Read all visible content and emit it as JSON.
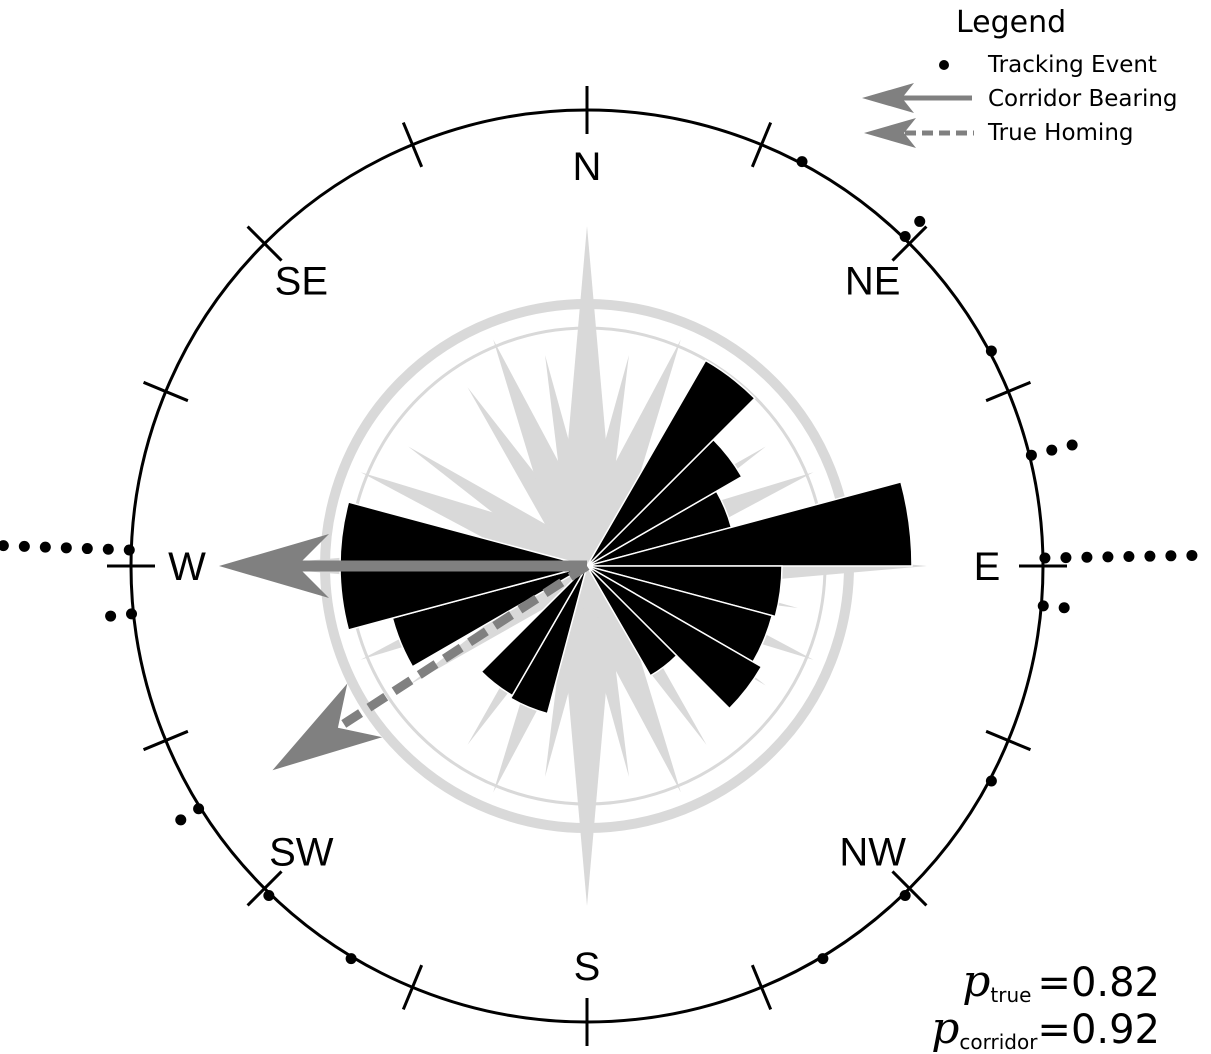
{
  "chart_data": {
    "type": "rose",
    "polar_orientation": "N at top, E at right, W at left, S at bottom; SE label at upper-left, NE at upper-right, SW at lower-left, NW at lower-right",
    "directions": [
      {
        "key": "N",
        "label": "N",
        "angle_deg": 0
      },
      {
        "key": "NE",
        "label": "NE",
        "angle_deg": 45
      },
      {
        "key": "E",
        "label": "E",
        "angle_deg": 90
      },
      {
        "key": "NW",
        "label": "NW",
        "angle_deg": 135
      },
      {
        "key": "S",
        "label": "S",
        "angle_deg": 180
      },
      {
        "key": "SW",
        "label": "SW",
        "angle_deg": 225
      },
      {
        "key": "W",
        "label": "W",
        "angle_deg": 270
      },
      {
        "key": "SE",
        "label": "SE",
        "angle_deg": 315
      }
    ],
    "rose_bins": [
      {
        "start_deg": 60,
        "end_deg": 75,
        "radius": 0.46
      },
      {
        "start_deg": 45,
        "end_deg": 60,
        "radius": 0.55
      },
      {
        "start_deg": 30,
        "end_deg": 45,
        "radius": 0.73
      },
      {
        "start_deg": 75,
        "end_deg": 90,
        "radius": 1.0
      },
      {
        "start_deg": 90,
        "end_deg": 105,
        "radius": 0.6
      },
      {
        "start_deg": 105,
        "end_deg": 120,
        "radius": 0.59
      },
      {
        "start_deg": 120,
        "end_deg": 135,
        "radius": 0.62
      },
      {
        "start_deg": 135,
        "end_deg": 150,
        "radius": 0.39
      },
      {
        "start_deg": 195,
        "end_deg": 210,
        "radius": 0.47
      },
      {
        "start_deg": 210,
        "end_deg": 225,
        "radius": 0.46
      },
      {
        "start_deg": 240,
        "end_deg": 255,
        "radius": 0.62
      },
      {
        "start_deg": 255,
        "end_deg": 270,
        "radius": 0.76
      },
      {
        "start_deg": 270,
        "end_deg": 285,
        "radius": 0.76
      }
    ],
    "tracking_events_deg": [
      {
        "angle_deg": 28,
        "count": 1
      },
      {
        "angle_deg": 44,
        "count": 2
      },
      {
        "angle_deg": 62,
        "count": 1
      },
      {
        "angle_deg": 76,
        "count": 3
      },
      {
        "angle_deg": 89,
        "count": 8
      },
      {
        "angle_deg": 95,
        "count": 2
      },
      {
        "angle_deg": 118,
        "count": 1
      },
      {
        "angle_deg": 136,
        "count": 1
      },
      {
        "angle_deg": 149,
        "count": 1
      },
      {
        "angle_deg": 211,
        "count": 1
      },
      {
        "angle_deg": 224,
        "count": 1
      },
      {
        "angle_deg": 238,
        "count": 2
      },
      {
        "angle_deg": 264,
        "count": 2
      },
      {
        "angle_deg": 272,
        "count": 7
      }
    ],
    "corridor_bearing_deg": 270,
    "true_homing_deg": 237,
    "legend": {
      "title": "Legend",
      "entries": [
        {
          "label": "Tracking Event",
          "style": "dot"
        },
        {
          "label": "Corridor Bearing",
          "style": "solid-arrow"
        },
        {
          "label": "True Homing",
          "style": "dashed-arrow"
        }
      ]
    },
    "stats": [
      {
        "symbol": "p",
        "subscript": "true",
        "value": "=0.82"
      },
      {
        "symbol": "p",
        "subscript": "corridor",
        "value": "=0.92"
      }
    ],
    "colors": {
      "bins": "#000000",
      "arrow": "#808080",
      "compass_watermark": "#d9d9d9",
      "circle": "#000000"
    }
  }
}
